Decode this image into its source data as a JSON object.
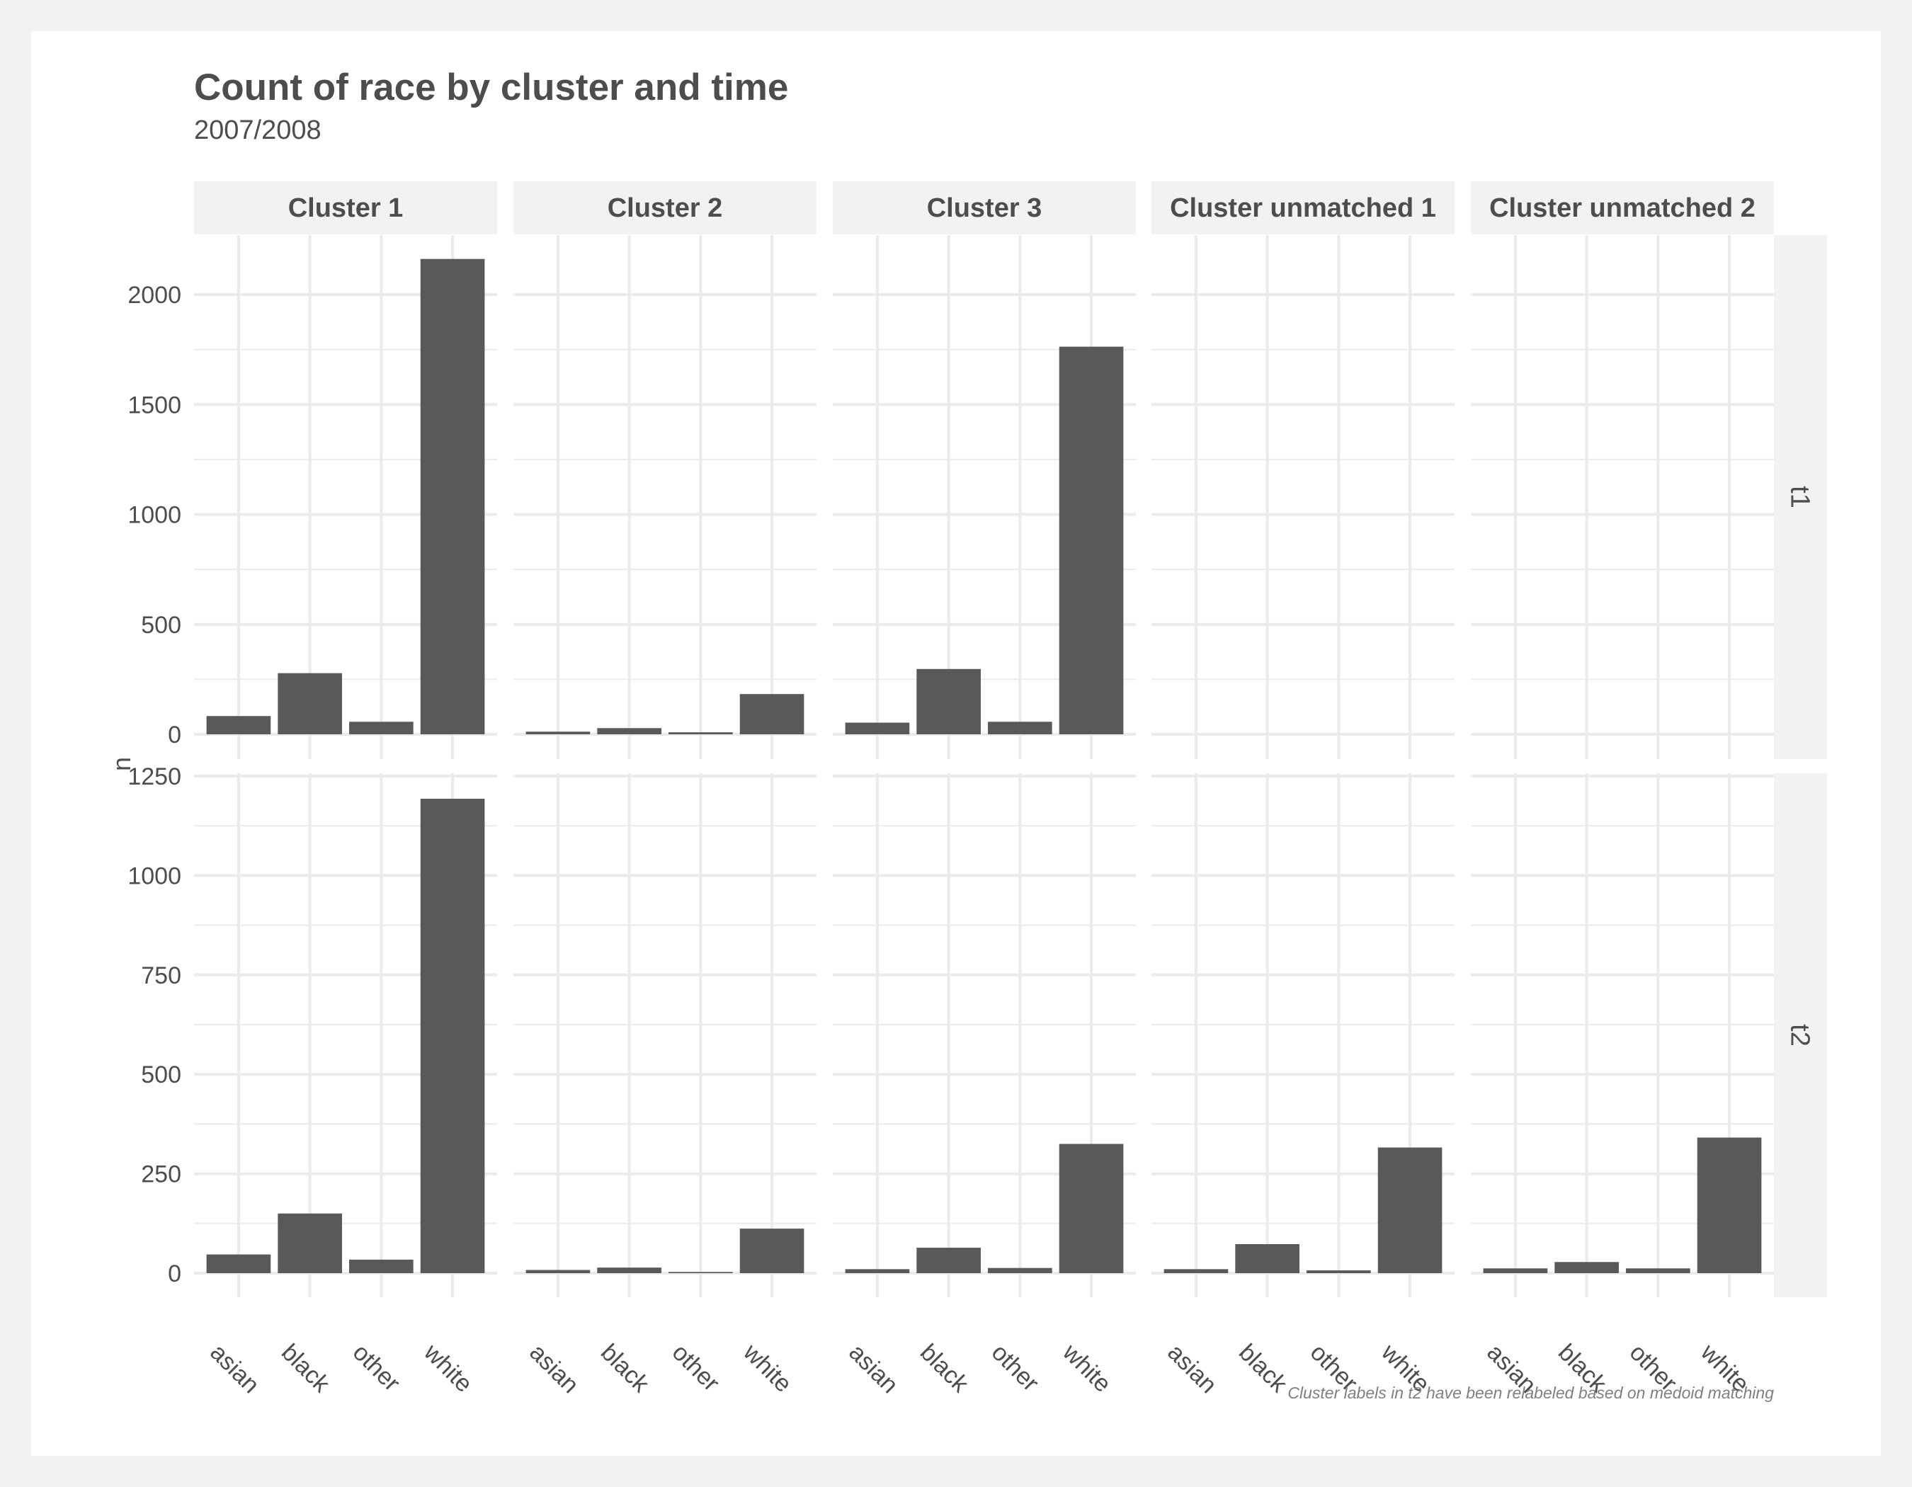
{
  "chart_data": {
    "type": "bar",
    "title": "Count of race by cluster and time",
    "subtitle": "2007/2008",
    "ylabel": "n",
    "xlabel": "",
    "caption": "Cluster labels in t2 have been relabeled based on medoid matching",
    "categories": [
      "asian",
      "black",
      "other",
      "white"
    ],
    "facets": {
      "columns": [
        "Cluster 1",
        "Cluster 2",
        "Cluster 3",
        "Cluster unmatched 1",
        "Cluster unmatched 2"
      ],
      "rows": [
        "t1",
        "t2"
      ]
    },
    "panels": [
      {
        "row": "t1",
        "ylim": [
          0,
          2200
        ],
        "yticks": [
          0,
          500,
          1000,
          1500,
          2000
        ],
        "values": {
          "Cluster 1": [
            83,
            278,
            57,
            2162
          ],
          "Cluster 2": [
            12,
            28,
            9,
            183
          ],
          "Cluster 3": [
            53,
            297,
            57,
            1763
          ],
          "Cluster unmatched 1": null,
          "Cluster unmatched 2": null
        }
      },
      {
        "row": "t2",
        "ylim": [
          0,
          1250
        ],
        "yticks": [
          0,
          250,
          500,
          750,
          1000,
          1250
        ],
        "values": {
          "Cluster 1": [
            47,
            150,
            34,
            1193
          ],
          "Cluster 2": [
            8,
            14,
            3,
            112
          ],
          "Cluster 3": [
            10,
            64,
            13,
            325
          ],
          "Cluster unmatched 1": [
            10,
            73,
            7,
            316
          ],
          "Cluster unmatched 2": [
            12,
            28,
            12,
            341
          ]
        }
      }
    ],
    "colors": {
      "bar": "#595959",
      "grid": "#ebebeb",
      "strip": "#f2f2f2",
      "text": "#4d4d4d"
    },
    "grid": true,
    "legend": "none"
  }
}
